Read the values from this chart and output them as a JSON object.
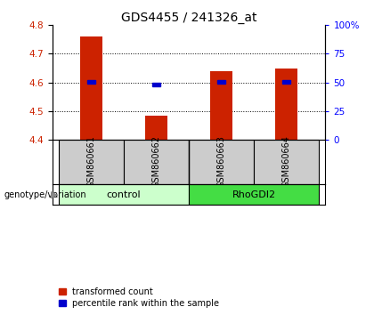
{
  "title": "GDS4455 / 241326_at",
  "samples": [
    "GSM860661",
    "GSM860662",
    "GSM860663",
    "GSM860664"
  ],
  "bar_values": [
    4.762,
    4.484,
    4.638,
    4.648
  ],
  "percentile_values": [
    4.601,
    4.592,
    4.601,
    4.601
  ],
  "bar_bottom": 4.4,
  "ylim": [
    4.4,
    4.8
  ],
  "yticks": [
    4.4,
    4.5,
    4.6,
    4.7,
    4.8
  ],
  "right_yticks": [
    0,
    25,
    50,
    75,
    100
  ],
  "right_ytick_labels": [
    "0",
    "25",
    "50",
    "75",
    "100%"
  ],
  "dotted_lines": [
    4.5,
    4.6,
    4.7
  ],
  "bar_color": "#cc2200",
  "percentile_color": "#0000cc",
  "groups": [
    {
      "label": "control",
      "samples": [
        0,
        1
      ],
      "color": "#ccffcc"
    },
    {
      "label": "RhoGDI2",
      "samples": [
        2,
        3
      ],
      "color": "#44dd44"
    }
  ],
  "genotype_label": "genotype/variation",
  "legend_bar": "transformed count",
  "legend_pct": "percentile rank within the sample",
  "bar_width": 0.35,
  "sample_box_color": "#cccccc",
  "title_fontsize": 10,
  "tick_fontsize": 7.5,
  "label_fontsize": 7.5
}
